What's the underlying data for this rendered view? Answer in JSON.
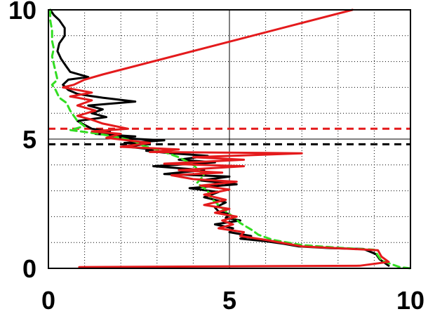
{
  "chart_data": {
    "type": "line",
    "title": "",
    "xlabel": "",
    "ylabel": "",
    "xlim": [
      0,
      10
    ],
    "ylim": [
      0,
      10
    ],
    "x_ticks": [
      {
        "value": 0,
        "label": "0"
      },
      {
        "value": 5,
        "label": "5"
      },
      {
        "value": 10,
        "label": "10"
      }
    ],
    "y_ticks": [
      {
        "value": 0,
        "label": "0"
      },
      {
        "value": 5,
        "label": "5"
      },
      {
        "value": 10,
        "label": "10"
      }
    ],
    "minor_grid_step": 1,
    "grid": true,
    "reference_lines": [
      {
        "orientation": "vertical",
        "x": 5,
        "color": "#000000",
        "style": "solid"
      },
      {
        "orientation": "horizontal",
        "y": 5,
        "color": "#000000",
        "style": "solid"
      },
      {
        "orientation": "horizontal",
        "y": 4.8,
        "color": "#000000",
        "style": "dashed"
      },
      {
        "orientation": "horizontal",
        "y": 5.4,
        "color": "#e41a1c",
        "style": "dashed"
      }
    ],
    "series": [
      {
        "color": "#000000",
        "style": "solid",
        "points": [
          [
            0.05,
            10.0
          ],
          [
            0.15,
            9.8
          ],
          [
            0.3,
            9.6
          ],
          [
            0.45,
            9.3
          ],
          [
            0.45,
            9.0
          ],
          [
            0.3,
            8.7
          ],
          [
            0.25,
            8.4
          ],
          [
            0.35,
            8.1
          ],
          [
            0.5,
            7.8
          ],
          [
            0.6,
            7.6
          ],
          [
            1.1,
            7.4
          ],
          [
            0.55,
            7.3
          ],
          [
            0.4,
            7.1
          ],
          [
            0.55,
            6.9
          ],
          [
            0.8,
            6.75
          ],
          [
            1.0,
            6.7
          ],
          [
            1.5,
            6.6
          ],
          [
            2.4,
            6.45
          ],
          [
            1.1,
            6.3
          ],
          [
            1.5,
            6.15
          ],
          [
            1.2,
            6.0
          ],
          [
            1.6,
            5.85
          ],
          [
            0.8,
            5.7
          ],
          [
            1.0,
            5.55
          ],
          [
            1.2,
            5.4
          ],
          [
            1.7,
            5.3
          ],
          [
            1.3,
            5.2
          ],
          [
            2.4,
            5.1
          ],
          [
            1.8,
            5.05
          ],
          [
            3.2,
            4.95
          ],
          [
            2.1,
            4.85
          ],
          [
            2.6,
            4.8
          ],
          [
            2.2,
            4.7
          ],
          [
            2.9,
            4.6
          ],
          [
            2.7,
            4.55
          ],
          [
            3.4,
            4.45
          ],
          [
            4.4,
            4.35
          ],
          [
            3.6,
            4.2
          ],
          [
            4.6,
            4.1
          ],
          [
            2.9,
            3.95
          ],
          [
            4.3,
            3.8
          ],
          [
            3.2,
            3.65
          ],
          [
            5.0,
            3.55
          ],
          [
            4.2,
            3.4
          ],
          [
            5.2,
            3.25
          ],
          [
            3.9,
            3.1
          ],
          [
            4.7,
            2.95
          ],
          [
            4.3,
            2.75
          ],
          [
            4.9,
            2.55
          ],
          [
            4.6,
            2.35
          ],
          [
            4.7,
            2.2
          ],
          [
            5.0,
            2.1
          ],
          [
            4.9,
            1.95
          ],
          [
            5.3,
            1.85
          ],
          [
            4.6,
            1.7
          ],
          [
            5.1,
            1.55
          ],
          [
            5.0,
            1.4
          ],
          [
            5.6,
            1.25
          ],
          [
            5.3,
            1.15
          ],
          [
            6.0,
            1.05
          ],
          [
            6.5,
            0.95
          ],
          [
            6.9,
            0.85
          ],
          [
            7.8,
            0.78
          ],
          [
            8.7,
            0.75
          ],
          [
            9.05,
            0.55
          ],
          [
            9.15,
            0.35
          ],
          [
            9.4,
            0.1
          ]
        ]
      },
      {
        "color": "#33dd22",
        "style": "dashed",
        "points": [
          [
            0.05,
            10.0
          ],
          [
            0.05,
            9.6
          ],
          [
            0.1,
            9.2
          ],
          [
            0.1,
            8.8
          ],
          [
            0.15,
            8.5
          ],
          [
            0.1,
            8.2
          ],
          [
            0.15,
            7.9
          ],
          [
            0.2,
            7.6
          ],
          [
            0.25,
            7.3
          ],
          [
            0.1,
            7.1
          ],
          [
            0.2,
            6.9
          ],
          [
            0.3,
            6.6
          ],
          [
            0.5,
            6.4
          ],
          [
            0.6,
            6.1
          ],
          [
            0.7,
            5.9
          ],
          [
            0.8,
            5.7
          ],
          [
            1.0,
            5.5
          ],
          [
            0.6,
            5.35
          ],
          [
            1.4,
            5.2
          ],
          [
            2.0,
            5.05
          ],
          [
            2.4,
            4.9
          ],
          [
            2.6,
            4.75
          ],
          [
            3.1,
            4.55
          ],
          [
            3.6,
            4.3
          ],
          [
            4.0,
            4.0
          ],
          [
            4.3,
            3.6
          ],
          [
            4.1,
            3.3
          ],
          [
            4.4,
            3.0
          ],
          [
            4.5,
            2.7
          ],
          [
            4.7,
            2.45
          ],
          [
            4.9,
            2.2
          ],
          [
            5.1,
            2.0
          ],
          [
            5.3,
            1.75
          ],
          [
            5.6,
            1.5
          ],
          [
            5.8,
            1.3
          ],
          [
            6.2,
            1.1
          ],
          [
            7.0,
            0.9
          ],
          [
            8.0,
            0.8
          ],
          [
            9.0,
            0.72
          ],
          [
            9.1,
            0.5
          ],
          [
            9.2,
            0.3
          ],
          [
            9.5,
            0.15
          ],
          [
            9.7,
            0.05
          ],
          [
            10.0,
            0.0
          ]
        ]
      },
      {
        "color": "#e41a1c",
        "style": "solid",
        "points": [
          [
            8.4,
            10.0
          ],
          [
            1.5,
            7.5
          ],
          [
            1.0,
            7.3
          ],
          [
            0.7,
            7.1
          ],
          [
            0.4,
            7.0
          ],
          [
            1.2,
            6.8
          ],
          [
            0.6,
            6.65
          ],
          [
            1.2,
            6.5
          ],
          [
            0.8,
            6.3
          ],
          [
            1.3,
            6.1
          ],
          [
            0.8,
            5.9
          ],
          [
            1.2,
            5.75
          ],
          [
            1.5,
            5.6
          ],
          [
            2.2,
            5.4
          ],
          [
            1.2,
            5.3
          ],
          [
            2.0,
            5.2
          ],
          [
            1.6,
            5.05
          ],
          [
            2.2,
            4.95
          ],
          [
            2.8,
            4.85
          ],
          [
            2.0,
            4.7
          ],
          [
            3.6,
            4.6
          ],
          [
            2.8,
            4.5
          ],
          [
            7.0,
            4.45
          ],
          [
            4.0,
            4.3
          ],
          [
            5.4,
            4.2
          ],
          [
            3.2,
            4.05
          ],
          [
            5.4,
            3.95
          ],
          [
            3.6,
            3.8
          ],
          [
            4.8,
            3.7
          ],
          [
            3.4,
            3.6
          ],
          [
            4.0,
            3.45
          ],
          [
            5.2,
            3.35
          ],
          [
            4.2,
            3.2
          ],
          [
            5.0,
            3.05
          ],
          [
            4.3,
            2.85
          ],
          [
            4.9,
            2.65
          ],
          [
            4.3,
            2.45
          ],
          [
            5.0,
            2.3
          ],
          [
            4.6,
            2.15
          ],
          [
            5.2,
            2.0
          ],
          [
            4.8,
            1.85
          ],
          [
            5.1,
            1.7
          ],
          [
            4.7,
            1.55
          ],
          [
            5.4,
            1.4
          ],
          [
            5.3,
            1.25
          ],
          [
            6.0,
            1.1
          ],
          [
            6.6,
            0.95
          ],
          [
            7.0,
            0.85
          ],
          [
            9.1,
            0.7
          ],
          [
            9.2,
            0.45
          ],
          [
            9.4,
            0.25
          ],
          [
            8.6,
            0.1
          ],
          [
            0.85,
            0.05
          ]
        ]
      }
    ]
  }
}
